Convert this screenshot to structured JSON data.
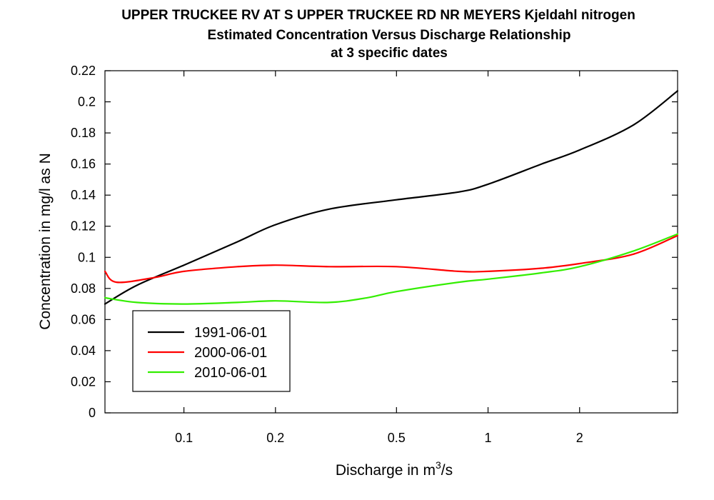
{
  "chart_data": {
    "type": "line",
    "title": "UPPER TRUCKEE RV AT S UPPER TRUCKEE RD NR MEYERS    Kjeldahl nitrogen",
    "subtitle": "Estimated Concentration Versus Discharge Relationship",
    "subtitle2": "at 3 specific dates",
    "xlabel": "Discharge in m",
    "xlabel_sup": "3",
    "xlabel_tail": "/s",
    "ylabel": "Concentration in mg/l as N",
    "x_scale": "log",
    "xlim": [
      0.055,
      4.2
    ],
    "ylim": [
      0,
      0.22
    ],
    "x_ticks": [
      0.1,
      0.2,
      0.5,
      1,
      2
    ],
    "x_tick_labels": [
      "0.1",
      "0.2",
      "0.5",
      "1",
      "2"
    ],
    "y_ticks": [
      0,
      0.02,
      0.04,
      0.06,
      0.08,
      0.1,
      0.12,
      0.14,
      0.16,
      0.18,
      0.2,
      0.22
    ],
    "y_tick_labels": [
      "0",
      "0.02",
      "0.04",
      "0.06",
      "0.08",
      "0.1",
      "0.12",
      "0.14",
      "0.16",
      "0.18",
      "0.2",
      "0.22"
    ],
    "grid": false,
    "legend_position": "lower-left",
    "series": [
      {
        "name": "1991-06-01",
        "color": "#000000",
        "x": [
          0.055,
          0.07,
          0.1,
          0.15,
          0.2,
          0.3,
          0.5,
          0.8,
          1,
          1.5,
          2,
          3,
          4.2
        ],
        "y": [
          0.07,
          0.082,
          0.095,
          0.11,
          0.121,
          0.131,
          0.137,
          0.142,
          0.147,
          0.16,
          0.169,
          0.185,
          0.207
        ]
      },
      {
        "name": "2000-06-01",
        "color": "#ff0000",
        "x": [
          0.055,
          0.06,
          0.08,
          0.1,
          0.15,
          0.2,
          0.3,
          0.5,
          0.8,
          1,
          1.5,
          2,
          3,
          4.2
        ],
        "y": [
          0.091,
          0.084,
          0.087,
          0.091,
          0.094,
          0.095,
          0.094,
          0.094,
          0.091,
          0.091,
          0.093,
          0.096,
          0.102,
          0.114
        ]
      },
      {
        "name": "2010-06-01",
        "color": "#33ee00",
        "x": [
          0.055,
          0.07,
          0.1,
          0.15,
          0.2,
          0.3,
          0.4,
          0.5,
          0.8,
          1,
          1.5,
          2,
          3,
          4.2
        ],
        "y": [
          0.074,
          0.071,
          0.07,
          0.071,
          0.072,
          0.071,
          0.074,
          0.078,
          0.084,
          0.086,
          0.09,
          0.094,
          0.104,
          0.115
        ]
      }
    ]
  }
}
